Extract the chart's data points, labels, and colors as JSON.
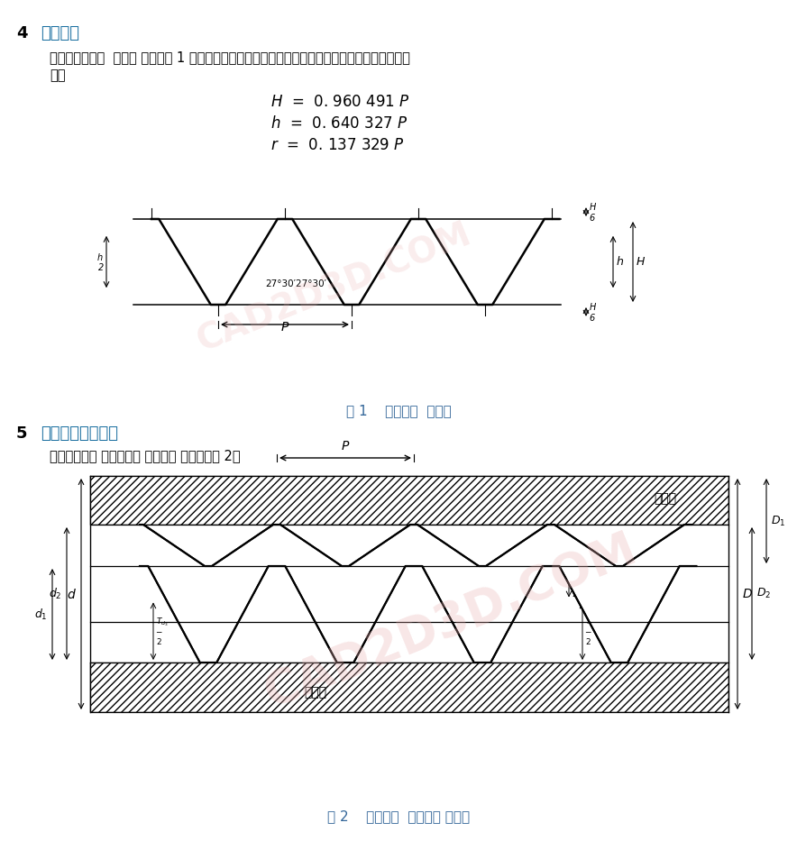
{
  "title4_num": "4",
  "title4_text": "设计牙型",
  "para1_line1": "圆柱管螺纹的设  计牙型 应符合图 1 的规定。其左、右两牙侧的牙侧角相等，相关尺寸按下列公式计",
  "para1_line2": "算：",
  "formula1": "$H$  =  0. 960 491 $P$",
  "formula2": "$h$  =  0. 640 327 $P$",
  "formula3": "$r$  =  0. 137 329 $P$",
  "fig1_caption": "图 1    螺纹的设  计牙型",
  "title5_num": "5",
  "title5_text": "基本尺寸及其公差",
  "para2_text": "圆柱管螺纹的 各直径尺寸 及其公差 带分布见图 2。",
  "fig2_caption": "图 2    螺纹尺寸  及其公差 带分布",
  "bg_color": "#ffffff",
  "text_color": "#000000",
  "blue_color": "#1a6fa0",
  "fig_caption_color": "#336699",
  "watermark_color": "#e8b0b0",
  "angle_label": "27°30′27°30′",
  "label_inthread": "内螺纹",
  "label_exthread": "外螺纹"
}
